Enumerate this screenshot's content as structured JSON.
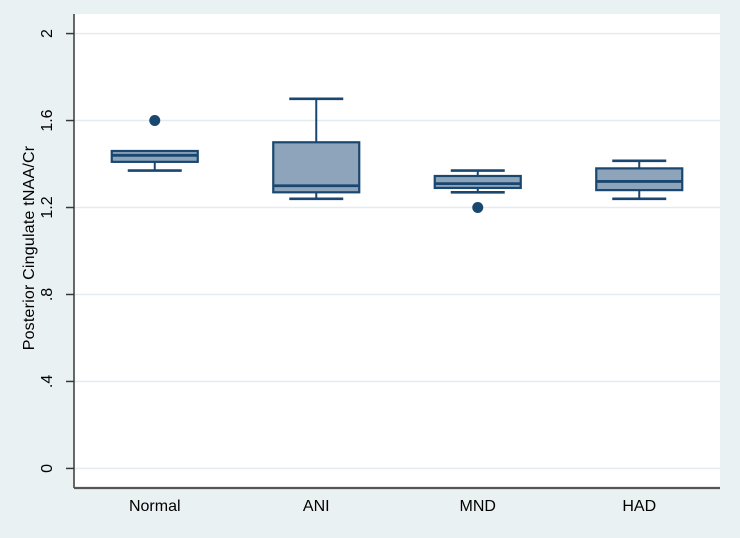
{
  "chart_data": {
    "type": "boxplot",
    "title": "",
    "xlabel": "",
    "ylabel": "Posterior Cingulate tNAA/Cr",
    "categories": [
      "Normal",
      "ANI",
      "MND",
      "HAD"
    ],
    "y_ticks": [
      0,
      0.4,
      0.8,
      1.2,
      1.6,
      2
    ],
    "y_tick_labels": [
      "0",
      ".4",
      ".8",
      "1.2",
      "1.6",
      "2"
    ],
    "ylim": [
      -0.09,
      2.09
    ],
    "grid": true,
    "legend": false,
    "series": [
      {
        "name": "Normal",
        "whisker_low": 1.37,
        "q1": 1.41,
        "median": 1.44,
        "q3": 1.46,
        "whisker_high": null,
        "outliers": [
          1.6
        ]
      },
      {
        "name": "ANI",
        "whisker_low": 1.24,
        "q1": 1.27,
        "median": 1.3,
        "q3": 1.5,
        "whisker_high": 1.7,
        "outliers": []
      },
      {
        "name": "MND",
        "whisker_low": 1.27,
        "q1": 1.29,
        "median": 1.31,
        "q3": 1.345,
        "whisker_high": 1.37,
        "outliers": [
          1.2
        ]
      },
      {
        "name": "HAD",
        "whisker_low": 1.24,
        "q1": 1.28,
        "median": 1.32,
        "q3": 1.38,
        "whisker_high": 1.415,
        "outliers": []
      }
    ],
    "colors": {
      "figure_background": "#EAF1F2",
      "plot_background": "#FFFFFF",
      "box_fill": "#8DA4BA",
      "box_line": "#1A476F",
      "outlier": "#1A476F",
      "gridline": "#E4EBEF",
      "y_axis_line": "#383838",
      "x_axis_line": "#565656",
      "text": "#000000"
    }
  }
}
